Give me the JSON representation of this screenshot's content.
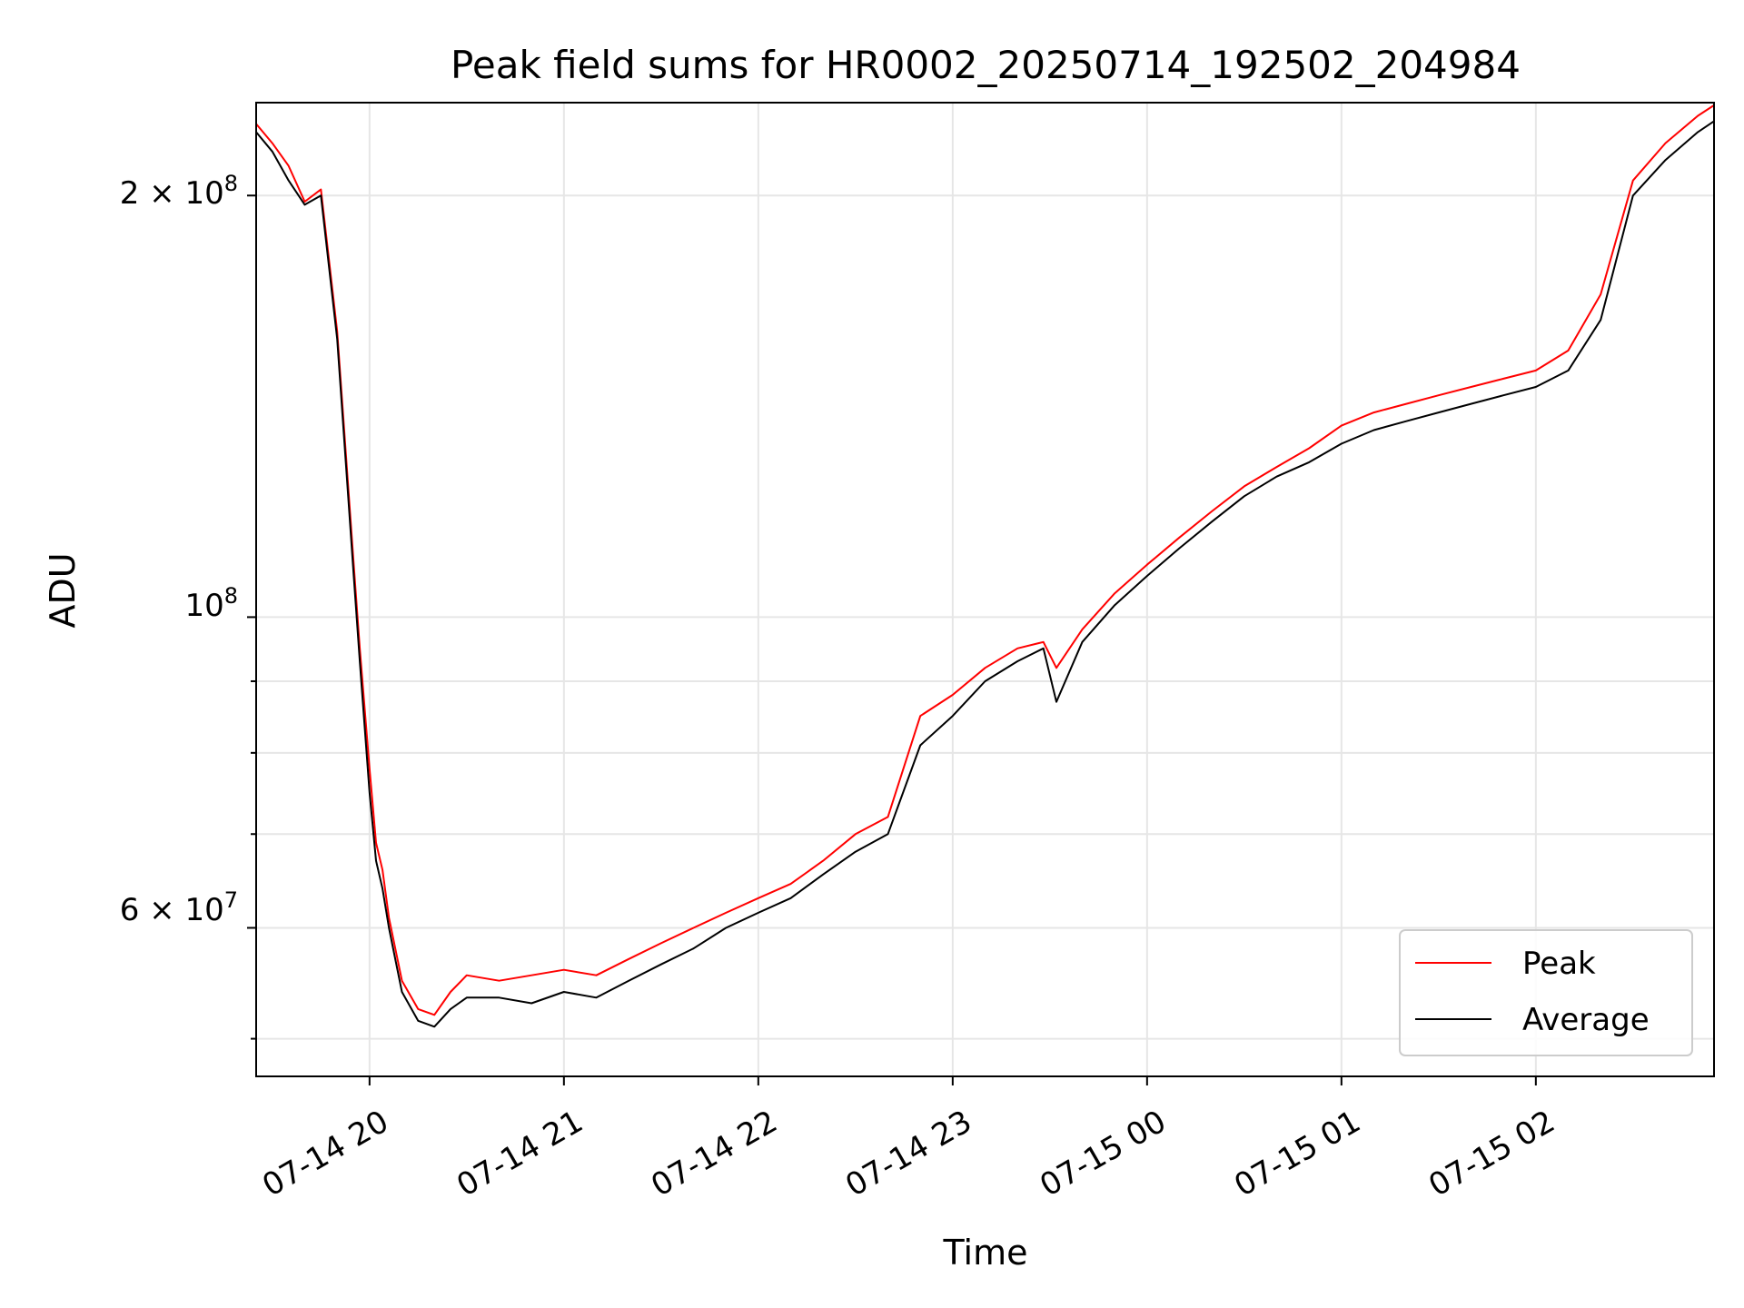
{
  "chart_data": {
    "type": "line",
    "title": "Peak field sums for HR0002_20250714_192502_204984",
    "xlabel": "Time",
    "ylabel": "ADU",
    "y_scale": "log",
    "ylim": [
      47000000,
      233000000
    ],
    "xlim": [
      "2025-07-14 19:25",
      "2025-07-15 02:55"
    ],
    "grid": true,
    "legend_position": "lower-right",
    "x_ticks": [
      "07-14 20",
      "07-14 21",
      "07-14 22",
      "07-14 23",
      "07-15 00",
      "07-15 01",
      "07-15 02"
    ],
    "y_tick_labels": {
      "major_100M": "10",
      "major_100M_exp": "8",
      "two_e8_mantissa": "2 × 10",
      "two_e8_exp": "8",
      "six_e7_mantissa": "6 × 10",
      "six_e7_exp": "7"
    },
    "series": [
      {
        "name": "Peak",
        "color": "#ff0000",
        "x": [
          "07-14 19:25",
          "07-14 19:30",
          "07-14 19:35",
          "07-14 19:40",
          "07-14 19:45",
          "07-14 19:50",
          "07-14 19:55",
          "07-14 19:57",
          "07-14 20:00",
          "07-14 20:02",
          "07-14 20:04",
          "07-14 20:06",
          "07-14 20:10",
          "07-14 20:15",
          "07-14 20:20",
          "07-14 20:25",
          "07-14 20:30",
          "07-14 20:40",
          "07-14 20:50",
          "07-14 21:00",
          "07-14 21:10",
          "07-14 21:20",
          "07-14 21:30",
          "07-14 21:40",
          "07-14 21:50",
          "07-14 22:00",
          "07-14 22:10",
          "07-14 22:20",
          "07-14 22:30",
          "07-14 22:40",
          "07-14 22:50",
          "07-14 23:00",
          "07-14 23:10",
          "07-14 23:20",
          "07-14 23:28",
          "07-14 23:32",
          "07-14 23:40",
          "07-14 23:50",
          "07-15 00:00",
          "07-15 00:10",
          "07-15 00:20",
          "07-15 00:30",
          "07-15 00:40",
          "07-15 00:50",
          "07-15 01:00",
          "07-15 01:10",
          "07-15 01:20",
          "07-15 01:30",
          "07-15 01:40",
          "07-15 01:50",
          "07-15 02:00",
          "07-15 02:10",
          "07-15 02:20",
          "07-15 02:30",
          "07-15 02:40",
          "07-15 02:50",
          "07-15 02:55"
        ],
        "values": [
          225000000,
          218000000,
          210000000,
          198000000,
          202000000,
          160000000,
          110000000,
          95000000,
          78000000,
          69000000,
          66000000,
          61000000,
          55000000,
          52500000,
          52000000,
          54000000,
          55500000,
          55000000,
          55500000,
          56000000,
          55500000,
          57000000,
          58500000,
          60000000,
          61500000,
          63000000,
          64500000,
          67000000,
          70000000,
          72000000,
          85000000,
          88000000,
          92000000,
          95000000,
          96000000,
          92000000,
          98000000,
          104000000,
          109000000,
          114000000,
          119000000,
          124000000,
          128000000,
          132000000,
          137000000,
          140000000,
          142000000,
          144000000,
          146000000,
          148000000,
          150000000,
          155000000,
          170000000,
          205000000,
          218000000,
          228000000,
          232000000
        ]
      },
      {
        "name": "Average",
        "color": "#000000",
        "x": [
          "07-14 19:25",
          "07-14 19:30",
          "07-14 19:35",
          "07-14 19:40",
          "07-14 19:45",
          "07-14 19:50",
          "07-14 19:55",
          "07-14 19:57",
          "07-14 20:00",
          "07-14 20:02",
          "07-14 20:04",
          "07-14 20:06",
          "07-14 20:10",
          "07-14 20:15",
          "07-14 20:20",
          "07-14 20:25",
          "07-14 20:30",
          "07-14 20:40",
          "07-14 20:50",
          "07-14 21:00",
          "07-14 21:10",
          "07-14 21:20",
          "07-14 21:30",
          "07-14 21:40",
          "07-14 21:50",
          "07-14 22:00",
          "07-14 22:10",
          "07-14 22:20",
          "07-14 22:30",
          "07-14 22:40",
          "07-14 22:50",
          "07-14 23:00",
          "07-14 23:10",
          "07-14 23:20",
          "07-14 23:28",
          "07-14 23:32",
          "07-14 23:40",
          "07-14 23:50",
          "07-15 00:00",
          "07-15 00:10",
          "07-15 00:20",
          "07-15 00:30",
          "07-15 00:40",
          "07-15 00:50",
          "07-15 01:00",
          "07-15 01:10",
          "07-15 01:20",
          "07-15 01:30",
          "07-15 01:40",
          "07-15 01:50",
          "07-15 02:00",
          "07-15 02:10",
          "07-15 02:20",
          "07-15 02:30",
          "07-15 02:40",
          "07-15 02:50",
          "07-15 02:55"
        ],
        "values": [
          222000000,
          215000000,
          205000000,
          197000000,
          200000000,
          158000000,
          108000000,
          93000000,
          75000000,
          67000000,
          64000000,
          60000000,
          54000000,
          51500000,
          51000000,
          52500000,
          53500000,
          53500000,
          53000000,
          54000000,
          53500000,
          55000000,
          56500000,
          58000000,
          60000000,
          61500000,
          63000000,
          65500000,
          68000000,
          70000000,
          81000000,
          85000000,
          90000000,
          93000000,
          95000000,
          87000000,
          96000000,
          102000000,
          107000000,
          112000000,
          117000000,
          122000000,
          126000000,
          129000000,
          133000000,
          136000000,
          138000000,
          140000000,
          142000000,
          144000000,
          146000000,
          150000000,
          163000000,
          200000000,
          212000000,
          222000000,
          226000000
        ]
      }
    ]
  }
}
